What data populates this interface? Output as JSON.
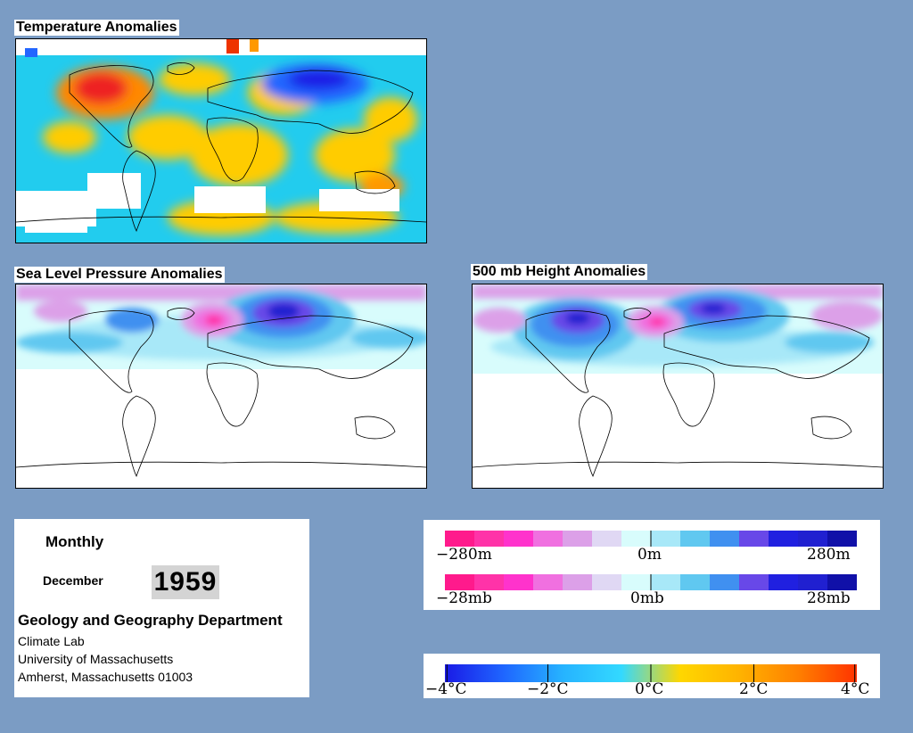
{
  "panels": {
    "temperature": {
      "title": "Temperature Anomalies"
    },
    "slp": {
      "title": "Sea Level Pressure Anomalies"
    },
    "height500": {
      "title": "500 mb Height Anomalies"
    }
  },
  "info": {
    "period": "Monthly",
    "month": "December",
    "year": "1959",
    "department": "Geology and Geography Department",
    "lab": "Climate Lab",
    "university": "University of Massachusetts",
    "address": "Amherst, Massachusetts 01003"
  },
  "legend_height": {
    "labels": [
      "−280m",
      "0m",
      "280m"
    ]
  },
  "legend_pressure": {
    "labels": [
      "−28mb",
      "0mb",
      "28mb"
    ]
  },
  "legend_temperature": {
    "labels": [
      "−4°C",
      "−2°C",
      "0°C",
      "2°C",
      "4°C"
    ]
  },
  "colors": {
    "background": "#7b9cc4",
    "pressure_scale": [
      "#ff1a8c",
      "#ff33a8",
      "#ff33cc",
      "#f070e0",
      "#dca0e8",
      "#e0d8f4",
      "#d8fcfc",
      "#a8e8f8",
      "#60c8f0",
      "#4090f0",
      "#6848e8",
      "#2020e0",
      "#2020d0",
      "#1010a8"
    ],
    "temperature_scale": [
      "#1a1ae6",
      "#1f66ff",
      "#26b3ff",
      "#33d9ff",
      "#ffd700",
      "#ffb300",
      "#ff8000",
      "#ff3300"
    ]
  }
}
